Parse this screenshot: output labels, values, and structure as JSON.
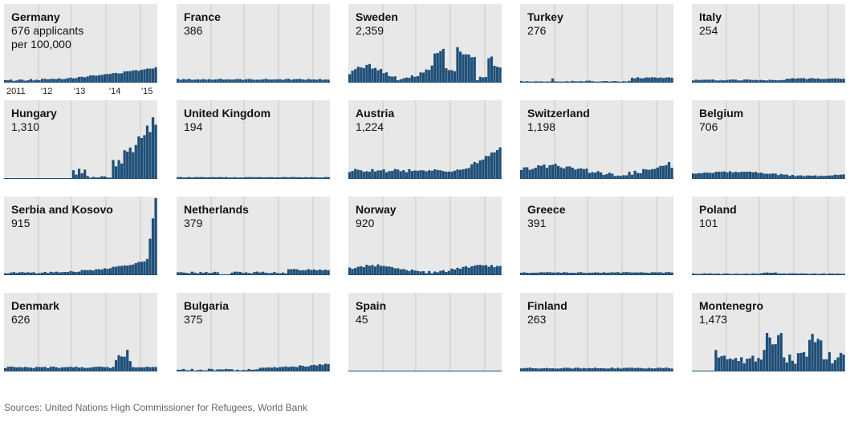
{
  "chart_data": {
    "type": "bar",
    "subtitle_first": "676 applicants",
    "subtitle_second": "per 100,000",
    "x_ticks": [
      "2011",
      "'12",
      "'13",
      "'14",
      "'15"
    ],
    "colors": {
      "bar": "#1f4f78",
      "panel_bg": "#e8e8e8",
      "grid": "#c9c9c9"
    },
    "panels": [
      {
        "name": "Germany",
        "value": "676",
        "shape": "germany",
        "peak": 0.2
      },
      {
        "name": "France",
        "value": "386",
        "shape": "flat",
        "peak": 0.05
      },
      {
        "name": "Sweden",
        "value": "2,359",
        "shape": "sweden",
        "peak": 0.46
      },
      {
        "name": "Turkey",
        "value": "276",
        "shape": "turkey",
        "peak": 0.07
      },
      {
        "name": "Italy",
        "value": "254",
        "shape": "italy",
        "peak": 0.06
      },
      {
        "name": "Hungary",
        "value": "1,310",
        "shape": "hungary",
        "peak": 0.8
      },
      {
        "name": "United Kingdom",
        "value": "194",
        "shape": "flat",
        "peak": 0.025
      },
      {
        "name": "Austria",
        "value": "1,224",
        "shape": "austria",
        "peak": 0.41
      },
      {
        "name": "Switzerland",
        "value": "1,198",
        "shape": "switz",
        "peak": 0.22
      },
      {
        "name": "Belgium",
        "value": "706",
        "shape": "belgium",
        "peak": 0.1
      },
      {
        "name": "Serbia and Kosovo",
        "value": "915",
        "shape": "serbia",
        "peak": 1.0
      },
      {
        "name": "Netherlands",
        "value": "379",
        "shape": "nether",
        "peak": 0.08
      },
      {
        "name": "Norway",
        "value": "920",
        "shape": "norway",
        "peak": 0.14
      },
      {
        "name": "Greece",
        "value": "391",
        "shape": "flat",
        "peak": 0.04
      },
      {
        "name": "Poland",
        "value": "101",
        "shape": "poland",
        "peak": 0.035
      },
      {
        "name": "Denmark",
        "value": "626",
        "shape": "denmark",
        "peak": 0.28
      },
      {
        "name": "Bulgaria",
        "value": "375",
        "shape": "bulgaria",
        "peak": 0.1
      },
      {
        "name": "Spain",
        "value": "45",
        "shape": "spain",
        "peak": 0.01
      },
      {
        "name": "Finland",
        "value": "263",
        "shape": "finland",
        "peak": 0.05
      },
      {
        "name": "Montenegro",
        "value": "1,473",
        "shape": "monte",
        "peak": 0.5
      }
    ]
  },
  "footer": {
    "source": "Sources: United Nations High Commissioner for Refugees, World Bank"
  }
}
